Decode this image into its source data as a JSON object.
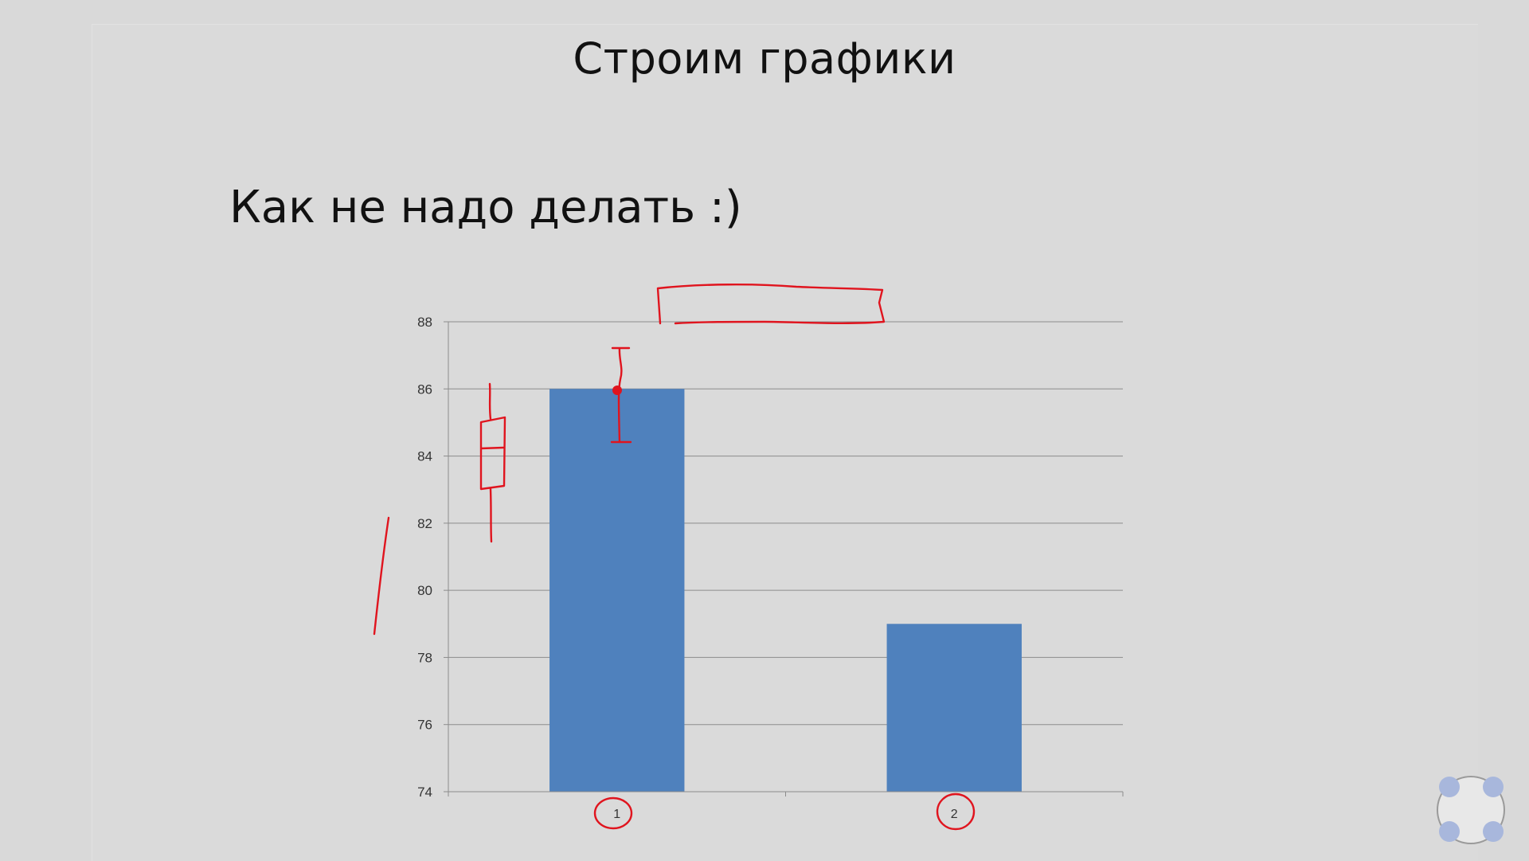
{
  "slide": {
    "title": "Строим графики",
    "subtitle": "Как не надо делать :)"
  },
  "colors": {
    "bar": "#4f81bd",
    "grid": "#8c8c8c",
    "annotation": "#e0141e",
    "background": "#d9d9d9"
  },
  "chart_data": {
    "type": "bar",
    "title": "",
    "xlabel": "",
    "ylabel": "",
    "categories": [
      "1",
      "2"
    ],
    "values": [
      86,
      79
    ],
    "ylim": [
      74,
      88
    ],
    "yticks": [
      74,
      76,
      78,
      80,
      82,
      84,
      86,
      88
    ],
    "grid": true,
    "legend": "none"
  },
  "nav": {
    "icon": "slide-navigator-icon"
  }
}
